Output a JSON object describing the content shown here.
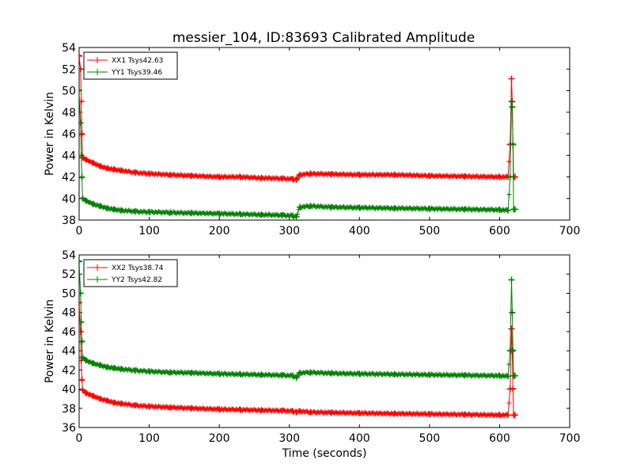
{
  "chart_data": [
    {
      "type": "line",
      "title": "messier_104, ID:83693 Calibrated Amplitude",
      "xlabel": "",
      "ylabel": "Power in Kelvin",
      "xlim": [
        0,
        700
      ],
      "ylim": [
        38,
        54
      ],
      "xticks": [
        0,
        100,
        200,
        300,
        400,
        500,
        600,
        700
      ],
      "yticks": [
        38,
        40,
        42,
        44,
        46,
        48,
        50,
        52,
        54
      ],
      "legend_position": "top-left",
      "series": [
        {
          "name": "XX1 Tsys42.63",
          "color": "#ff0000",
          "x": [
            0,
            2,
            3,
            4,
            5,
            10,
            20,
            30,
            40,
            50,
            60,
            80,
            100,
            130,
            160,
            200,
            230,
            260,
            290,
            305,
            310,
            315,
            330,
            360,
            400,
            450,
            500,
            550,
            600,
            612,
            615,
            617,
            618,
            619,
            620,
            622
          ],
          "y": [
            53.2,
            52.0,
            49.0,
            46.0,
            43.8,
            43.6,
            43.3,
            43.0,
            42.8,
            42.7,
            42.6,
            42.4,
            42.3,
            42.2,
            42.1,
            42.0,
            42.0,
            41.9,
            41.85,
            41.8,
            41.75,
            42.2,
            42.3,
            42.25,
            42.2,
            42.2,
            42.1,
            42.05,
            42.0,
            42.0,
            45.0,
            51.1,
            49.0,
            45.0,
            42.0,
            42.0
          ]
        },
        {
          "name": "YY1 Tsys39.46",
          "color": "#008000",
          "x": [
            0,
            2,
            3,
            4,
            5,
            10,
            20,
            30,
            40,
            50,
            60,
            80,
            100,
            130,
            160,
            200,
            230,
            260,
            290,
            305,
            310,
            315,
            330,
            360,
            400,
            450,
            500,
            550,
            600,
            612,
            615,
            617,
            618,
            619,
            620,
            622
          ],
          "y": [
            50.0,
            47.0,
            44.0,
            42.0,
            40.0,
            39.8,
            39.5,
            39.3,
            39.1,
            39.0,
            38.9,
            38.8,
            38.75,
            38.7,
            38.65,
            38.6,
            38.55,
            38.5,
            38.45,
            38.4,
            38.3,
            39.2,
            39.3,
            39.2,
            39.15,
            39.1,
            39.05,
            39.0,
            38.95,
            38.9,
            42.0,
            49.0,
            48.5,
            45.0,
            39.0,
            39.0
          ]
        }
      ]
    },
    {
      "type": "line",
      "title": "",
      "xlabel": "Time (seconds)",
      "ylabel": "Power in Kelvin",
      "xlim": [
        0,
        700
      ],
      "ylim": [
        36,
        54
      ],
      "xticks": [
        0,
        100,
        200,
        300,
        400,
        500,
        600,
        700
      ],
      "yticks": [
        36,
        38,
        40,
        42,
        44,
        46,
        48,
        50,
        52,
        54
      ],
      "legend_position": "top-left",
      "series": [
        {
          "name": "XX2 Tsys38.74",
          "color": "#ff0000",
          "x": [
            0,
            2,
            3,
            4,
            5,
            10,
            20,
            30,
            40,
            50,
            60,
            80,
            100,
            130,
            160,
            200,
            230,
            260,
            290,
            305,
            310,
            315,
            330,
            360,
            400,
            450,
            500,
            550,
            600,
            612,
            615,
            617,
            618,
            619,
            620,
            622
          ],
          "y": [
            49.0,
            46.0,
            43.0,
            41.0,
            39.9,
            39.6,
            39.3,
            39.0,
            38.8,
            38.6,
            38.5,
            38.3,
            38.2,
            38.1,
            38.0,
            37.9,
            37.85,
            37.8,
            37.75,
            37.7,
            37.6,
            37.7,
            37.6,
            37.55,
            37.5,
            37.45,
            37.4,
            37.35,
            37.3,
            37.3,
            40.0,
            46.3,
            44.0,
            40.0,
            37.3,
            37.3
          ]
        },
        {
          "name": "YY2 Tsys42.82",
          "color": "#008000",
          "x": [
            0,
            2,
            3,
            4,
            5,
            10,
            20,
            30,
            40,
            50,
            60,
            80,
            100,
            130,
            160,
            200,
            230,
            260,
            290,
            305,
            310,
            315,
            330,
            360,
            400,
            450,
            500,
            550,
            600,
            612,
            615,
            617,
            618,
            619,
            620,
            622
          ],
          "y": [
            53.3,
            50.0,
            47.0,
            45.0,
            43.3,
            43.0,
            42.7,
            42.5,
            42.3,
            42.2,
            42.1,
            41.95,
            41.85,
            41.75,
            41.7,
            41.6,
            41.55,
            41.5,
            41.45,
            41.4,
            41.2,
            41.7,
            41.75,
            41.65,
            41.6,
            41.55,
            41.5,
            41.45,
            41.4,
            41.35,
            44.0,
            51.4,
            48.0,
            44.0,
            41.4,
            41.4
          ]
        }
      ]
    }
  ]
}
